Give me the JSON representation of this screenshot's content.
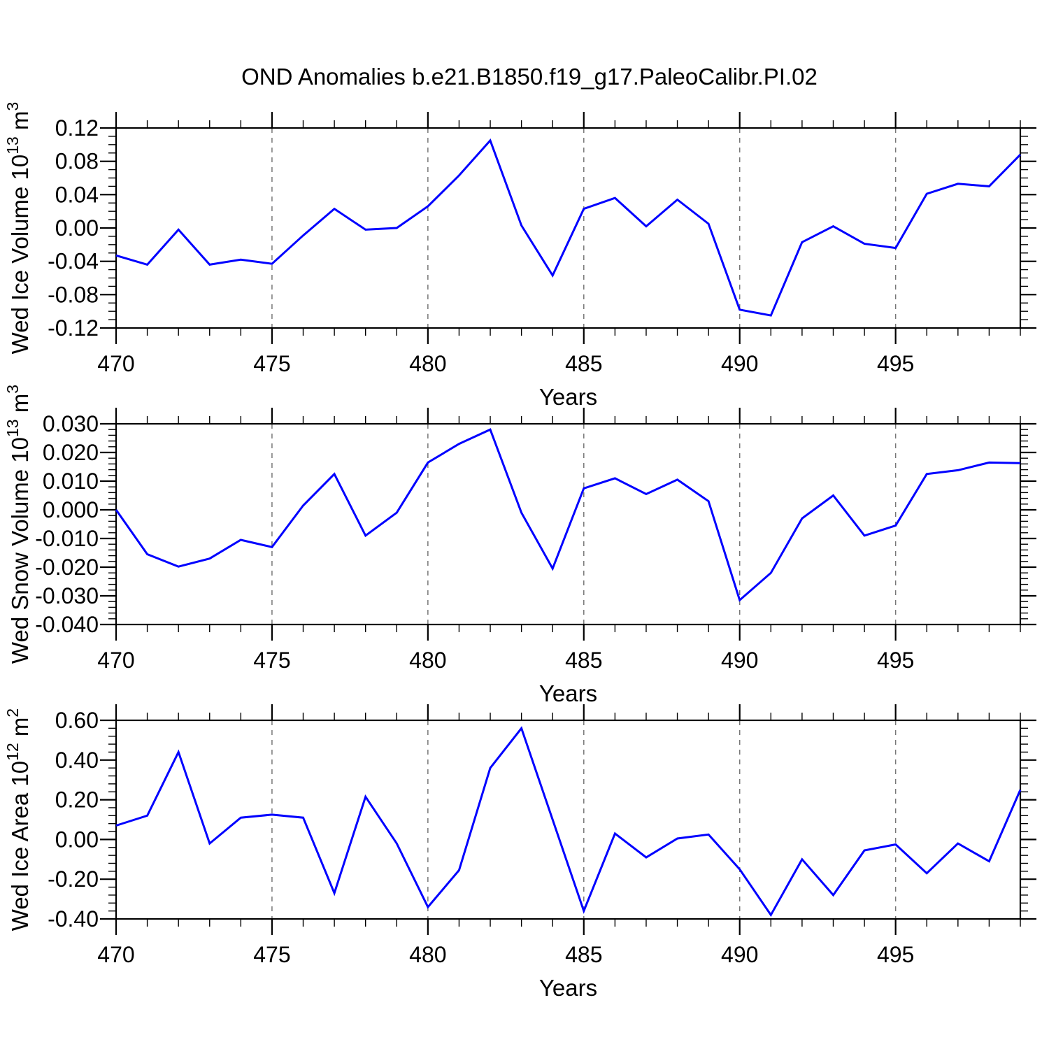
{
  "title": "OND Anomalies b.e21.B1850.f19_g17.PaleoCalibr.PI.02",
  "colors": {
    "line": "#0000ff",
    "grid": "#777777",
    "axis": "#000000",
    "text": "#000000"
  },
  "x_axis": {
    "label": "Years",
    "years": [
      470,
      471,
      472,
      473,
      474,
      475,
      476,
      477,
      478,
      479,
      480,
      481,
      482,
      483,
      484,
      485,
      486,
      487,
      488,
      489,
      490,
      491,
      492,
      493,
      494,
      495,
      496,
      497,
      498,
      499
    ],
    "major_ticks": [
      470,
      475,
      480,
      485,
      490,
      495
    ],
    "tick_labels": [
      "470",
      "475",
      "480",
      "485",
      "490",
      "495"
    ],
    "gridlines": [
      475,
      480,
      485,
      490,
      495
    ],
    "minor_step": 1
  },
  "chart_data": [
    {
      "type": "line",
      "id": "ice-volume",
      "ylabel": "Wed Ice Volume 10^13 m^3",
      "ylabel_parts": [
        {
          "t": "Wed Ice Volume 10",
          "sup": false
        },
        {
          "t": "13",
          "sup": true
        },
        {
          "t": " m",
          "sup": false
        },
        {
          "t": "3",
          "sup": true
        }
      ],
      "xlabel": "Years",
      "ylim": [
        -0.12,
        0.12
      ],
      "yticks": [
        {
          "v": 0.12,
          "label": "0.12"
        },
        {
          "v": 0.08,
          "label": "0.08"
        },
        {
          "v": 0.04,
          "label": "0.04"
        },
        {
          "v": 0.0,
          "label": "0.00"
        },
        {
          "v": -0.04,
          "label": "-0.04"
        },
        {
          "v": -0.08,
          "label": "-0.08"
        },
        {
          "v": -0.12,
          "label": "-0.12"
        }
      ],
      "y_minor_step": 0.01,
      "x_range": [
        470,
        499
      ],
      "grid": "vertical-dashed",
      "values": [
        -0.033,
        -0.044,
        -0.002,
        -0.044,
        -0.038,
        -0.043,
        -0.009,
        0.023,
        -0.002,
        0.0,
        0.026,
        0.063,
        0.105,
        0.003,
        -0.057,
        0.023,
        0.036,
        0.002,
        0.034,
        0.005,
        -0.098,
        -0.105,
        -0.017,
        0.002,
        -0.019,
        -0.024,
        0.041,
        0.053,
        0.05,
        0.088
      ]
    },
    {
      "type": "line",
      "id": "snow-volume",
      "ylabel": "Wed Snow Volume 10^13 m^3",
      "ylabel_parts": [
        {
          "t": "Wed Snow Volume 10",
          "sup": false
        },
        {
          "t": "13",
          "sup": true
        },
        {
          "t": " m",
          "sup": false
        },
        {
          "t": "3",
          "sup": true
        }
      ],
      "xlabel": "Years",
      "ylim": [
        -0.04,
        0.03
      ],
      "yticks": [
        {
          "v": 0.03,
          "label": "0.030"
        },
        {
          "v": 0.02,
          "label": "0.020"
        },
        {
          "v": 0.01,
          "label": "0.010"
        },
        {
          "v": 0.0,
          "label": "0.000"
        },
        {
          "v": -0.01,
          "label": "-0.010"
        },
        {
          "v": -0.02,
          "label": "-0.020"
        },
        {
          "v": -0.03,
          "label": "-0.030"
        },
        {
          "v": -0.04,
          "label": "-0.040"
        }
      ],
      "y_minor_step": 0.002,
      "x_range": [
        470,
        499
      ],
      "grid": "vertical-dashed",
      "values": [
        0.0,
        -0.0155,
        -0.0198,
        -0.017,
        -0.0105,
        -0.013,
        0.0015,
        0.0125,
        -0.009,
        -0.001,
        0.0165,
        0.023,
        0.028,
        -0.001,
        -0.0205,
        0.0075,
        0.011,
        0.0055,
        0.0105,
        0.003,
        -0.0315,
        -0.022,
        -0.003,
        0.005,
        -0.009,
        -0.0055,
        0.0125,
        0.0138,
        0.0165,
        0.0163
      ]
    },
    {
      "type": "line",
      "id": "ice-area",
      "ylabel": "Wed Ice Area 10^12 m^2",
      "ylabel_parts": [
        {
          "t": "Wed Ice Area 10",
          "sup": false
        },
        {
          "t": "12",
          "sup": true
        },
        {
          "t": " m",
          "sup": false
        },
        {
          "t": "2",
          "sup": true
        }
      ],
      "xlabel": "Years",
      "ylim": [
        -0.4,
        0.6
      ],
      "yticks": [
        {
          "v": 0.6,
          "label": "0.60"
        },
        {
          "v": 0.4,
          "label": "0.40"
        },
        {
          "v": 0.2,
          "label": "0.20"
        },
        {
          "v": 0.0,
          "label": "0.00"
        },
        {
          "v": -0.2,
          "label": "-0.20"
        },
        {
          "v": -0.4,
          "label": "-0.40"
        }
      ],
      "y_minor_step": 0.04,
      "x_range": [
        470,
        499
      ],
      "grid": "vertical-dashed",
      "values": [
        0.07,
        0.12,
        0.44,
        -0.02,
        0.11,
        0.125,
        0.11,
        -0.27,
        0.215,
        -0.02,
        -0.34,
        -0.155,
        0.36,
        0.56,
        0.1,
        -0.36,
        0.03,
        -0.09,
        0.005,
        0.025,
        -0.15,
        -0.38,
        -0.1,
        -0.28,
        -0.055,
        -0.025,
        -0.17,
        -0.02,
        -0.11,
        0.25
      ]
    }
  ]
}
